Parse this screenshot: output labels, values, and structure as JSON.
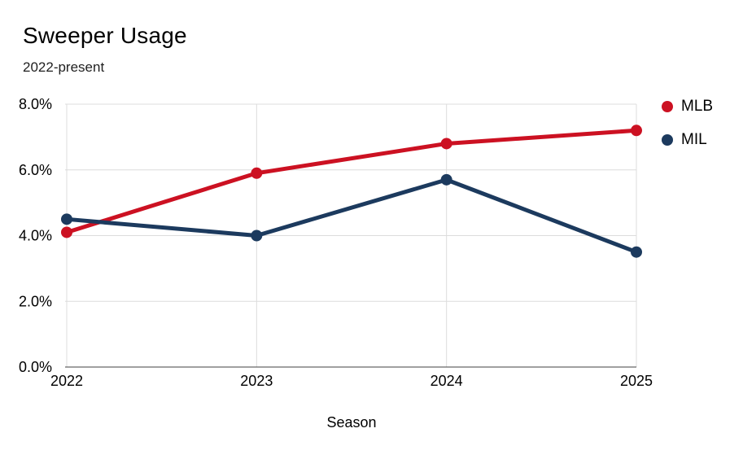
{
  "chart_data": {
    "type": "line",
    "title": "Sweeper Usage",
    "subtitle": "2022-present",
    "xlabel": "Season",
    "ylabel": "",
    "categories": [
      "2022",
      "2023",
      "2024",
      "2025"
    ],
    "series": [
      {
        "name": "MLB",
        "color": "#CC1122",
        "values": [
          4.1,
          5.9,
          6.8,
          7.2
        ]
      },
      {
        "name": "MIL",
        "color": "#1C3A5E",
        "values": [
          4.5,
          4.0,
          5.7,
          3.5
        ]
      }
    ],
    "value_unit": "%",
    "ylim": [
      0,
      8
    ],
    "yticks": [
      0,
      2,
      4,
      6,
      8
    ],
    "ytick_labels": [
      "0.0%",
      "2.0%",
      "4.0%",
      "6.0%",
      "8.0%"
    ],
    "grid": true,
    "marker": "circle",
    "legend_position": "right",
    "colors": {
      "gridline": "#DCDCDC",
      "axis_line": "#424242",
      "background": "#FFFFFF",
      "title_text": "#000000",
      "subtitle_text": "#1F1F1F"
    }
  }
}
